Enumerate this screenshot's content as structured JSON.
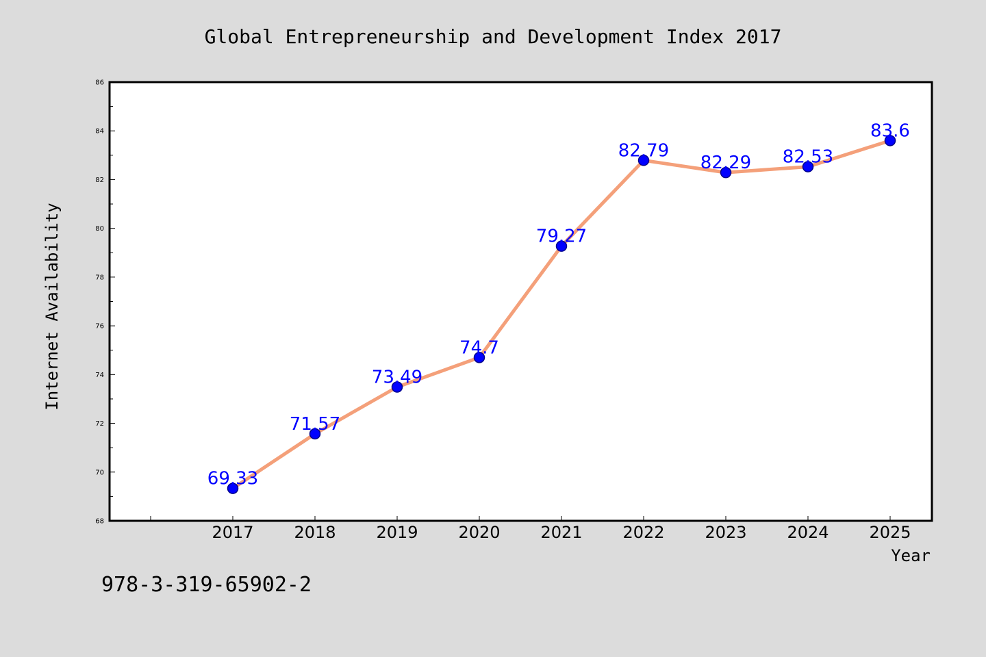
{
  "chart_data": {
    "type": "line",
    "title": "Global Entrepreneurship and Development Index 2017",
    "xlabel": "Year",
    "ylabel": "Internet Availability",
    "categories": [
      "2017",
      "2018",
      "2019",
      "2020",
      "2021",
      "2022",
      "2023",
      "2024",
      "2025"
    ],
    "values": [
      69.33,
      71.57,
      73.49,
      74.7,
      79.27,
      82.79,
      82.29,
      82.53,
      83.6
    ],
    "data_labels": [
      "69.33",
      "71.57",
      "73.49",
      "74.7",
      "79.27",
      "82.79",
      "82.29",
      "82.53",
      "83.6"
    ],
    "ylim": [
      68,
      86
    ],
    "yticks": [
      "68",
      "70",
      "72",
      "74",
      "76",
      "78",
      "80",
      "82",
      "84",
      "86"
    ],
    "grid": false,
    "legend": "none",
    "colors": {
      "line": "#f4a07a",
      "marker_fill": "#0000ff",
      "marker_edge": "#00008b",
      "data_label": "#0000ff",
      "plot_background": "#ffffff",
      "figure_background": "#dcdcdc"
    }
  },
  "footer": {
    "isbn": "978-3-319-65902-2"
  }
}
